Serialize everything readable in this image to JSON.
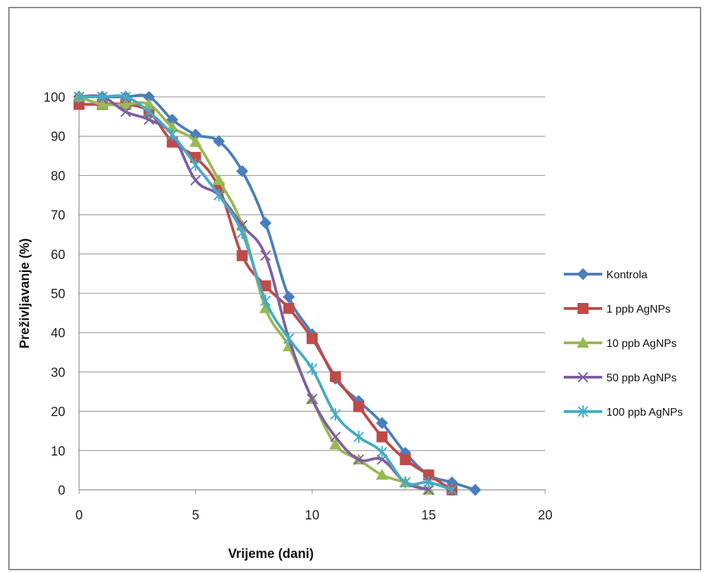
{
  "chart_data": {
    "type": "line",
    "smooth": true,
    "xlabel": "Vrijeme (dani)",
    "ylabel": "Preživljavanje (%)",
    "xlim": [
      0,
      20
    ],
    "ylim": [
      0,
      100
    ],
    "xticks": [
      0,
      5,
      10,
      15,
      20
    ],
    "yticks": [
      0,
      10,
      20,
      30,
      40,
      50,
      60,
      70,
      80,
      90,
      100
    ],
    "grid": "horizontal",
    "legend_position": "right",
    "series": [
      {
        "name": "Kontrola",
        "color": "#4a7ebb",
        "marker": "diamond",
        "x": [
          0,
          1,
          2,
          3,
          4,
          5,
          6,
          7,
          8,
          9,
          10,
          11,
          12,
          13,
          14,
          15,
          16,
          17
        ],
        "y": [
          100,
          100,
          100,
          100,
          94.2,
          90.4,
          88.7,
          81.1,
          67.9,
          49.1,
          39.6,
          28.3,
          22.6,
          17.0,
          9.4,
          3.8,
          1.9,
          0
        ]
      },
      {
        "name": "1 ppb AgNPs",
        "color": "#be4b48",
        "marker": "square",
        "x": [
          0,
          1,
          2,
          3,
          4,
          5,
          6,
          7,
          8,
          9,
          10,
          11,
          12,
          13,
          14,
          15,
          16
        ],
        "y": [
          98.1,
          98.1,
          98.1,
          96.2,
          88.5,
          84.6,
          76.9,
          59.6,
          51.9,
          46.2,
          38.5,
          28.8,
          21.2,
          13.5,
          7.7,
          3.8,
          0
        ]
      },
      {
        "name": "10 ppb AgNPs",
        "color": "#98b954",
        "marker": "triangle",
        "x": [
          0,
          1,
          2,
          3,
          4,
          5,
          6,
          7,
          8,
          9,
          10,
          11,
          12,
          13,
          14,
          15
        ],
        "y": [
          100,
          98.1,
          98.1,
          98.1,
          92.3,
          88.5,
          78.8,
          67.3,
          46.2,
          36.5,
          23.1,
          11.5,
          7.7,
          3.8,
          1.9,
          0
        ]
      },
      {
        "name": "50 ppb AgNPs",
        "color": "#7d60a0",
        "marker": "x",
        "x": [
          0,
          1,
          2,
          3,
          4,
          5,
          6,
          7,
          8,
          9,
          10,
          11,
          12,
          13,
          14,
          15
        ],
        "y": [
          100,
          100,
          96.2,
          94.2,
          90.4,
          78.8,
          75.0,
          67.3,
          59.6,
          38.5,
          23.1,
          13.5,
          7.7,
          7.7,
          1.9,
          0
        ]
      },
      {
        "name": "100 ppb AgNPs",
        "color": "#46aac5",
        "marker": "asterisk",
        "x": [
          0,
          1,
          2,
          3,
          4,
          5,
          6,
          7,
          8,
          9,
          10,
          11,
          12,
          13,
          14,
          15,
          16
        ],
        "y": [
          100,
          100,
          100,
          96.2,
          90.4,
          82.7,
          75.0,
          65.4,
          48.1,
          38.5,
          30.8,
          19.2,
          13.5,
          9.6,
          1.9,
          1.9,
          0
        ]
      }
    ]
  }
}
